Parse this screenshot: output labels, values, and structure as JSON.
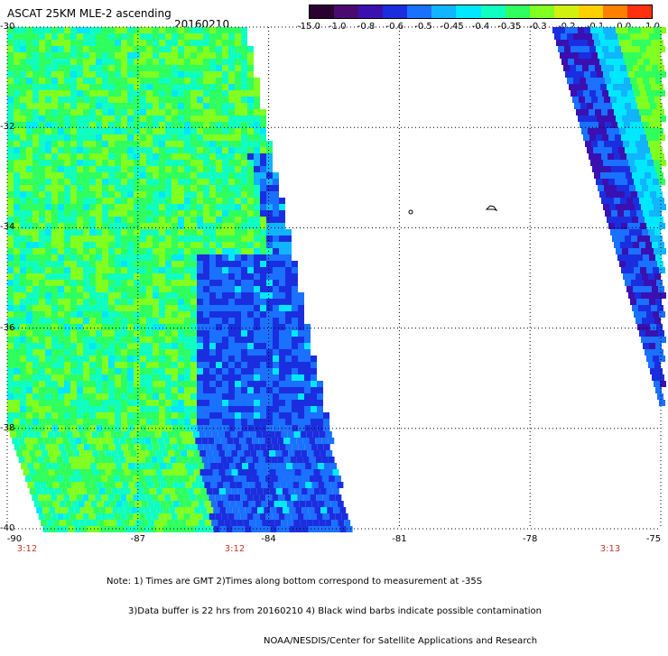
{
  "header": {
    "title": "ASCAT 25KM MLE-2 ascending",
    "date": "20160210"
  },
  "colorbar": {
    "labels": [
      "-15.0",
      "-1.0",
      "-0.8",
      "-0.6",
      "-0.5",
      "-0.45",
      "-0.4",
      "-0.35",
      "-0.3",
      "-0.2",
      "-0.1",
      "0.0",
      "1.0"
    ],
    "colors": [
      "#2a0030",
      "#4a0a70",
      "#3a10b0",
      "#1a2ee0",
      "#1a70ff",
      "#10b4ff",
      "#00e8ff",
      "#10ffc0",
      "#30ff60",
      "#80ff20",
      "#d0f010",
      "#ffd000",
      "#ff8000",
      "#ff3010"
    ]
  },
  "map": {
    "lat_labels": [
      "-30",
      "-32",
      "-34",
      "-36",
      "-38",
      "-40"
    ],
    "lon_labels": [
      "-90",
      "-87",
      "-84",
      "-81",
      "-78",
      "-75"
    ],
    "time_labels": [
      "3:12",
      "3:12",
      "3:13"
    ],
    "lat_range": [
      -40,
      -30
    ],
    "lon_range": [
      -90,
      -75
    ]
  },
  "notes": {
    "line1": "Note: 1) Times are GMT 2)Times along bottom correspond to measurement at -35S",
    "line2": "3)Data buffer is 22 hrs from 20160210 4) Black wind barbs indicate possible contamination",
    "line3": "NOAA/NESDIS/Center for Satellite Applications and Research"
  }
}
